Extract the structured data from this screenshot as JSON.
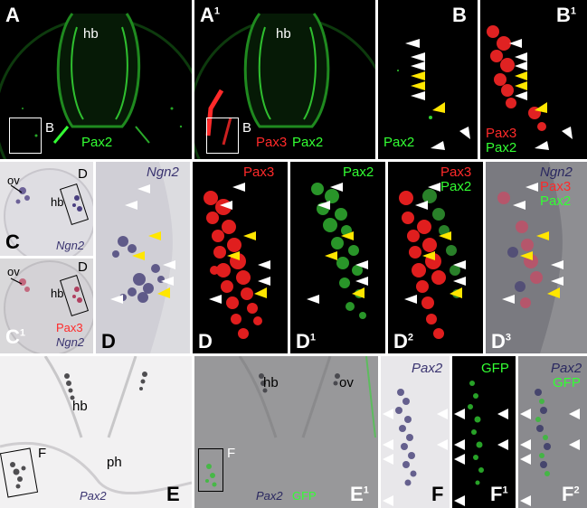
{
  "colors": {
    "pax2": "#33ff33",
    "pax3": "#ff2a2a",
    "ngn2": "#3a3470",
    "white_arrow": "#ffffff",
    "yellow_arrow": "#ffe600"
  },
  "panels": {
    "A": {
      "letter": "A",
      "hb": "hb",
      "box": "B",
      "pax2": "Pax2"
    },
    "A1": {
      "letter": "A",
      "sup": "1",
      "hb": "hb",
      "box": "B",
      "pax3": "Pax3",
      "pax2": "Pax2"
    },
    "B": {
      "letter": "B",
      "pax2": "Pax2"
    },
    "B1": {
      "letter": "B",
      "sup": "1",
      "pax3": "Pax3",
      "pax2": "Pax2"
    },
    "C": {
      "letter": "C",
      "ov": "ov",
      "hb": "hb",
      "box": "D",
      "ngn2": "Ngn2"
    },
    "C1": {
      "letter": "C",
      "sup": "1",
      "ov": "ov",
      "hb": "hb",
      "box": "D",
      "pax3": "Pax3",
      "ngn2": "Ngn2"
    },
    "D_ngn2": {
      "letter": "D",
      "ngn2": "Ngn2"
    },
    "D_pax3": {
      "letter": "D",
      "pax3": "Pax3"
    },
    "D1": {
      "letter": "D",
      "sup": "1",
      "pax2": "Pax2"
    },
    "D2": {
      "letter": "D",
      "sup": "2",
      "pax3": "Pax3",
      "pax2": "Pax2"
    },
    "D3": {
      "letter": "D",
      "sup": "3",
      "ngn2": "Ngn2",
      "pax3": "Pax3",
      "pax2": "Pax2"
    },
    "E": {
      "letter": "E",
      "hb": "hb",
      "ph": "ph",
      "box": "F",
      "pax2": "Pax2"
    },
    "E1": {
      "letter": "E",
      "sup": "1",
      "hb": "hb",
      "ov": "ov",
      "box": "F",
      "pax2": "Pax2",
      "gfp": "GFP"
    },
    "F": {
      "letter": "F",
      "pax2": "Pax2"
    },
    "F1": {
      "letter": "F",
      "sup": "1",
      "gfp": "GFP"
    },
    "F2": {
      "letter": "F",
      "sup": "2",
      "pax2": "Pax2",
      "gfp": "GFP"
    }
  }
}
